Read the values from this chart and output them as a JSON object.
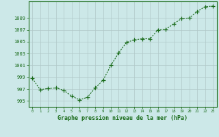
{
  "x": [
    0,
    1,
    2,
    3,
    4,
    5,
    6,
    7,
    8,
    9,
    10,
    11,
    12,
    13,
    14,
    15,
    16,
    17,
    18,
    19,
    20,
    21,
    22,
    23
  ],
  "y": [
    998.8,
    996.9,
    997.1,
    997.2,
    996.8,
    995.8,
    995.2,
    995.6,
    997.2,
    998.5,
    1001.0,
    1003.1,
    1004.9,
    1005.3,
    1005.5,
    1005.5,
    1007.0,
    1007.1,
    1008.0,
    1008.9,
    1009.0,
    1010.1,
    1010.9,
    1011.0
  ],
  "line_color": "#1a6b1a",
  "marker": "+",
  "marker_size": 4,
  "bg_color": "#cce8e8",
  "grid_color": "#b0c8c8",
  "xlabel": "Graphe pression niveau de la mer (hPa)",
  "xlabel_color": "#1a6b1a",
  "ylabel_ticks": [
    995,
    997,
    999,
    1001,
    1003,
    1005,
    1007,
    1009
  ],
  "xlim": [
    -0.5,
    23.5
  ],
  "ylim": [
    994.0,
    1011.8
  ],
  "xtick_labels": [
    "0",
    "1",
    "2",
    "3",
    "4",
    "5",
    "6",
    "7",
    "8",
    "9",
    "10",
    "11",
    "12",
    "13",
    "14",
    "15",
    "16",
    "17",
    "18",
    "19",
    "20",
    "21",
    "22",
    "23"
  ],
  "tick_color": "#1a6b1a",
  "tick_label_color": "#1a6b1a",
  "spine_color": "#1a6b1a"
}
